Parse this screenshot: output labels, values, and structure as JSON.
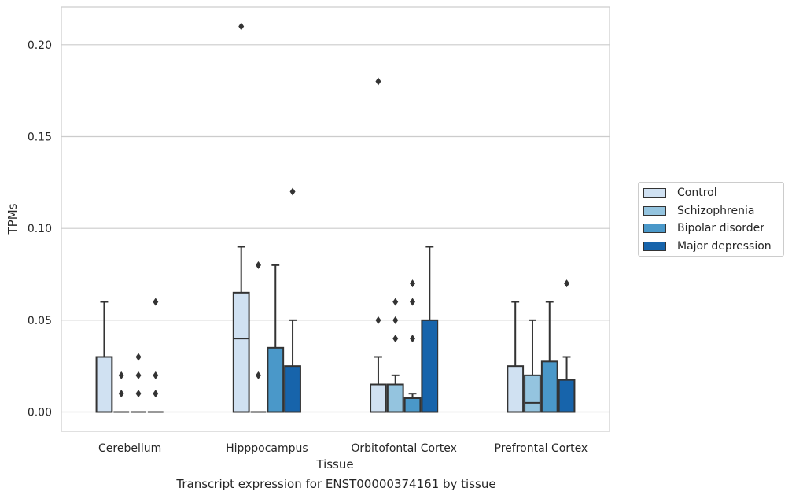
{
  "chart_data": {
    "type": "box",
    "title": "Transcript expression for ENST00000374161 by tissue",
    "xlabel": "Tissue",
    "ylabel": "TPMs",
    "ylim": [
      -0.0105,
      0.2205
    ],
    "yticks": [
      "0.00",
      "0.05",
      "0.10",
      "0.15",
      "0.20"
    ],
    "ytick_values": [
      0,
      0.05,
      0.1,
      0.15,
      0.2
    ],
    "grid": "horizontal",
    "legend_position": "right",
    "categories": [
      "Cerebellum",
      "Hipppocampus",
      "Orbitofontal Cortex",
      "Prefrontal Cortex"
    ],
    "series": [
      {
        "name": "Control",
        "color": "#d0e1f2",
        "boxes": [
          {
            "q1": 0,
            "median": 0,
            "q3": 0.03,
            "whislo": 0,
            "whishi": 0.06,
            "fliers": []
          },
          {
            "q1": 0,
            "median": 0.04,
            "q3": 0.065,
            "whislo": 0,
            "whishi": 0.09,
            "fliers": [
              0.21
            ]
          },
          {
            "q1": 0,
            "median": 0,
            "q3": 0.015,
            "whislo": 0,
            "whishi": 0.03,
            "fliers": [
              0.05,
              0.18
            ]
          },
          {
            "q1": 0,
            "median": 0,
            "q3": 0.025,
            "whislo": 0,
            "whishi": 0.06,
            "fliers": []
          }
        ]
      },
      {
        "name": "Schizophrenia",
        "color": "#94c4df",
        "boxes": [
          {
            "q1": 0,
            "median": 0,
            "q3": 0,
            "whislo": 0,
            "whishi": 0,
            "fliers": [
              0.01,
              0.02
            ]
          },
          {
            "q1": 0,
            "median": 0,
            "q3": 0,
            "whislo": 0,
            "whishi": 0,
            "fliers": [
              0.02,
              0.08
            ]
          },
          {
            "q1": 0,
            "median": 0,
            "q3": 0.015,
            "whislo": 0,
            "whishi": 0.02,
            "fliers": [
              0.04,
              0.05,
              0.06
            ]
          },
          {
            "q1": 0,
            "median": 0.005,
            "q3": 0.02,
            "whislo": 0,
            "whishi": 0.05,
            "fliers": []
          }
        ]
      },
      {
        "name": "Bipolar disorder",
        "color": "#4a98c9",
        "boxes": [
          {
            "q1": 0,
            "median": 0,
            "q3": 0,
            "whislo": 0,
            "whishi": 0,
            "fliers": [
              0.01,
              0.02,
              0.03
            ]
          },
          {
            "q1": 0,
            "median": 0,
            "q3": 0.035,
            "whislo": 0,
            "whishi": 0.08,
            "fliers": []
          },
          {
            "q1": 0,
            "median": 0,
            "q3": 0.0075,
            "whislo": 0,
            "whishi": 0.01,
            "fliers": [
              0.04,
              0.06,
              0.07
            ]
          },
          {
            "q1": 0,
            "median": 0,
            "q3": 0.0275,
            "whislo": 0,
            "whishi": 0.06,
            "fliers": []
          }
        ]
      },
      {
        "name": "Major depression",
        "color": "#1764ab",
        "boxes": [
          {
            "q1": 0,
            "median": 0,
            "q3": 0,
            "whislo": 0,
            "whishi": 0,
            "fliers": [
              0.01,
              0.02,
              0.06
            ]
          },
          {
            "q1": 0,
            "median": 0,
            "q3": 0.025,
            "whislo": 0,
            "whishi": 0.05,
            "fliers": [
              0.12
            ]
          },
          {
            "q1": 0,
            "median": 0,
            "q3": 0.05,
            "whislo": 0,
            "whishi": 0.09,
            "fliers": []
          },
          {
            "q1": 0,
            "median": 0,
            "q3": 0.0175,
            "whislo": 0,
            "whishi": 0.03,
            "fliers": [
              0.07
            ]
          }
        ]
      }
    ]
  }
}
